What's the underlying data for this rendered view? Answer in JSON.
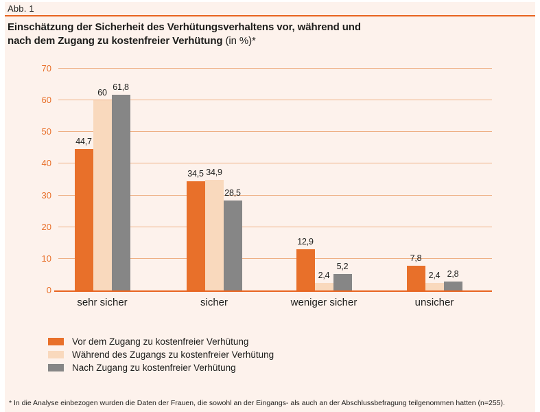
{
  "header": {
    "figure_label": "Abb. 1",
    "title_line1": "Einschätzung der Sicherheit des Verhütungsverhaltens vor, während und",
    "title_line2": "nach dem Zugang zu kostenfreier Verhütung",
    "title_suffix": "(in %)*"
  },
  "footnote": "* In die Analyse einbezogen wurden die Daten der Frauen, die sowohl an der Eingangs- als auch an der Abschlussbefragung teilgenommen hatten (n=255).",
  "colors": {
    "accent_orange": "#e8702a",
    "peach": "#f9d9bd",
    "gray": "#868686",
    "background": "#fdf2ec",
    "axis_line": "#e8641f",
    "text_dark": "#1d1d1b"
  },
  "chart_data": {
    "type": "bar",
    "title": "Einschätzung der Sicherheit des Verhütungsverhaltens vor, während und nach dem Zugang zu kostenfreier Verhütung (in %)",
    "categories": [
      "sehr sicher",
      "sicher",
      "weniger sicher",
      "unsicher"
    ],
    "series": [
      {
        "name": "Vor dem Zugang zu kostenfreier Verhütung",
        "color": "#e8702a",
        "values": [
          44.7,
          34.5,
          12.9,
          7.8
        ],
        "labels": [
          "44,7",
          "34,5",
          "12,9",
          "7,8"
        ]
      },
      {
        "name": "Während des Zugangs zu kostenfreier Verhütung",
        "color": "#f9d9bd",
        "values": [
          60,
          34.9,
          2.4,
          2.4
        ],
        "labels": [
          "60",
          "34,9",
          "2,4",
          "2,4"
        ]
      },
      {
        "name": "Nach Zugang zu kostenfreier Verhütung",
        "color": "#868686",
        "values": [
          61.8,
          28.5,
          5.2,
          2.8
        ],
        "labels": [
          "61,8",
          "28,5",
          "5,2",
          "2,8"
        ]
      }
    ],
    "xlabel": "",
    "ylabel": "",
    "ylim": [
      0,
      70
    ],
    "yticks": [
      0,
      10,
      20,
      30,
      40,
      50,
      60,
      70
    ],
    "grid": true,
    "legend_position": "bottom-left"
  }
}
